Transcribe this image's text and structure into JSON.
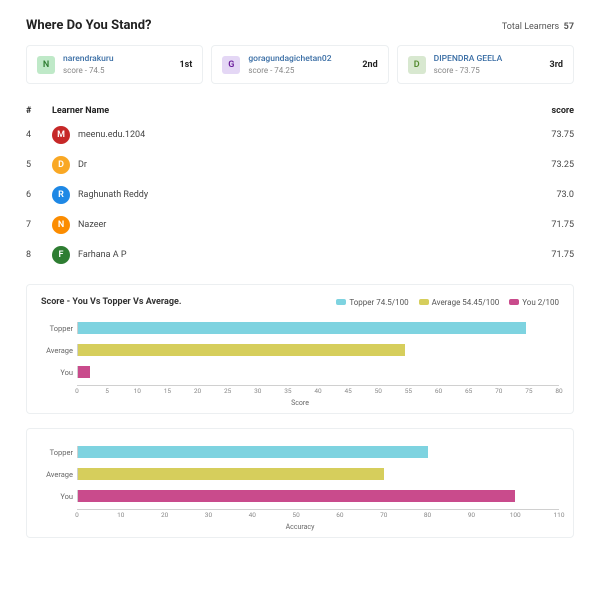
{
  "header": {
    "title": "Where Do You Stand?",
    "total_label": "Total Learners",
    "total_value": "57"
  },
  "colors": {
    "topper": "#7ed3e0",
    "average": "#d6ce5c",
    "you": "#c94b8c",
    "card_border": "#eceff1"
  },
  "top3": [
    {
      "initial": "N",
      "avatar_bg": "#bfe9c8",
      "avatar_fg": "#2e7d32",
      "name": "narendrakuru",
      "score_label": "score - 74.5",
      "rank": "1st"
    },
    {
      "initial": "G",
      "avatar_bg": "#e4d7f5",
      "avatar_fg": "#6a1b9a",
      "name": "goragundagichetan02",
      "score_label": "score - 74.25",
      "rank": "2nd"
    },
    {
      "initial": "D",
      "avatar_bg": "#d8e8d0",
      "avatar_fg": "#558b2f",
      "name": "DIPENDRA GEELA",
      "score_label": "score - 73.75",
      "rank": "3rd"
    }
  ],
  "table": {
    "head_rank": "#",
    "head_name": "Learner Name",
    "head_score": "score",
    "rows": [
      {
        "rank": "4",
        "initial": "M",
        "color": "#c62828",
        "name": "meenu.edu.1204",
        "score": "73.75"
      },
      {
        "rank": "5",
        "initial": "D",
        "color": "#f9a825",
        "name": "Dr",
        "score": "73.25"
      },
      {
        "rank": "6",
        "initial": "R",
        "color": "#1e88e5",
        "name": "Raghunath Reddy",
        "score": "73.0"
      },
      {
        "rank": "7",
        "initial": "N",
        "color": "#fb8c00",
        "name": "Nazeer",
        "score": "71.75"
      },
      {
        "rank": "8",
        "initial": "F",
        "color": "#2e7d32",
        "name": "Farhana A P",
        "score": "71.75"
      }
    ]
  },
  "chart1": {
    "title": "Score - You Vs Topper Vs Average.",
    "legend": [
      {
        "label": "Topper 74.5/100",
        "color": "#7ed3e0"
      },
      {
        "label": "Average 54.45/100",
        "color": "#d6ce5c"
      },
      {
        "label": "You 2/100",
        "color": "#c94b8c"
      }
    ],
    "xmax": 80,
    "ticks": [
      "0",
      "5",
      "10",
      "15",
      "20",
      "25",
      "30",
      "35",
      "40",
      "45",
      "50",
      "55",
      "60",
      "65",
      "70",
      "75",
      "80"
    ],
    "xlabel": "Score",
    "bars": [
      {
        "label": "Topper",
        "value": 74.5,
        "color": "#7ed3e0"
      },
      {
        "label": "Average",
        "value": 54.45,
        "color": "#d6ce5c"
      },
      {
        "label": "You",
        "value": 2,
        "color": "#c94b8c"
      }
    ]
  },
  "chart2": {
    "title": "",
    "xmax": 110,
    "ticks": [
      "0",
      "10",
      "20",
      "30",
      "40",
      "50",
      "60",
      "70",
      "80",
      "90",
      "100",
      "110"
    ],
    "xlabel": "Accuracy",
    "bars": [
      {
        "label": "Topper",
        "value": 80,
        "color": "#7ed3e0"
      },
      {
        "label": "Average",
        "value": 70,
        "color": "#d6ce5c"
      },
      {
        "label": "You",
        "value": 100,
        "color": "#c94b8c"
      }
    ]
  }
}
